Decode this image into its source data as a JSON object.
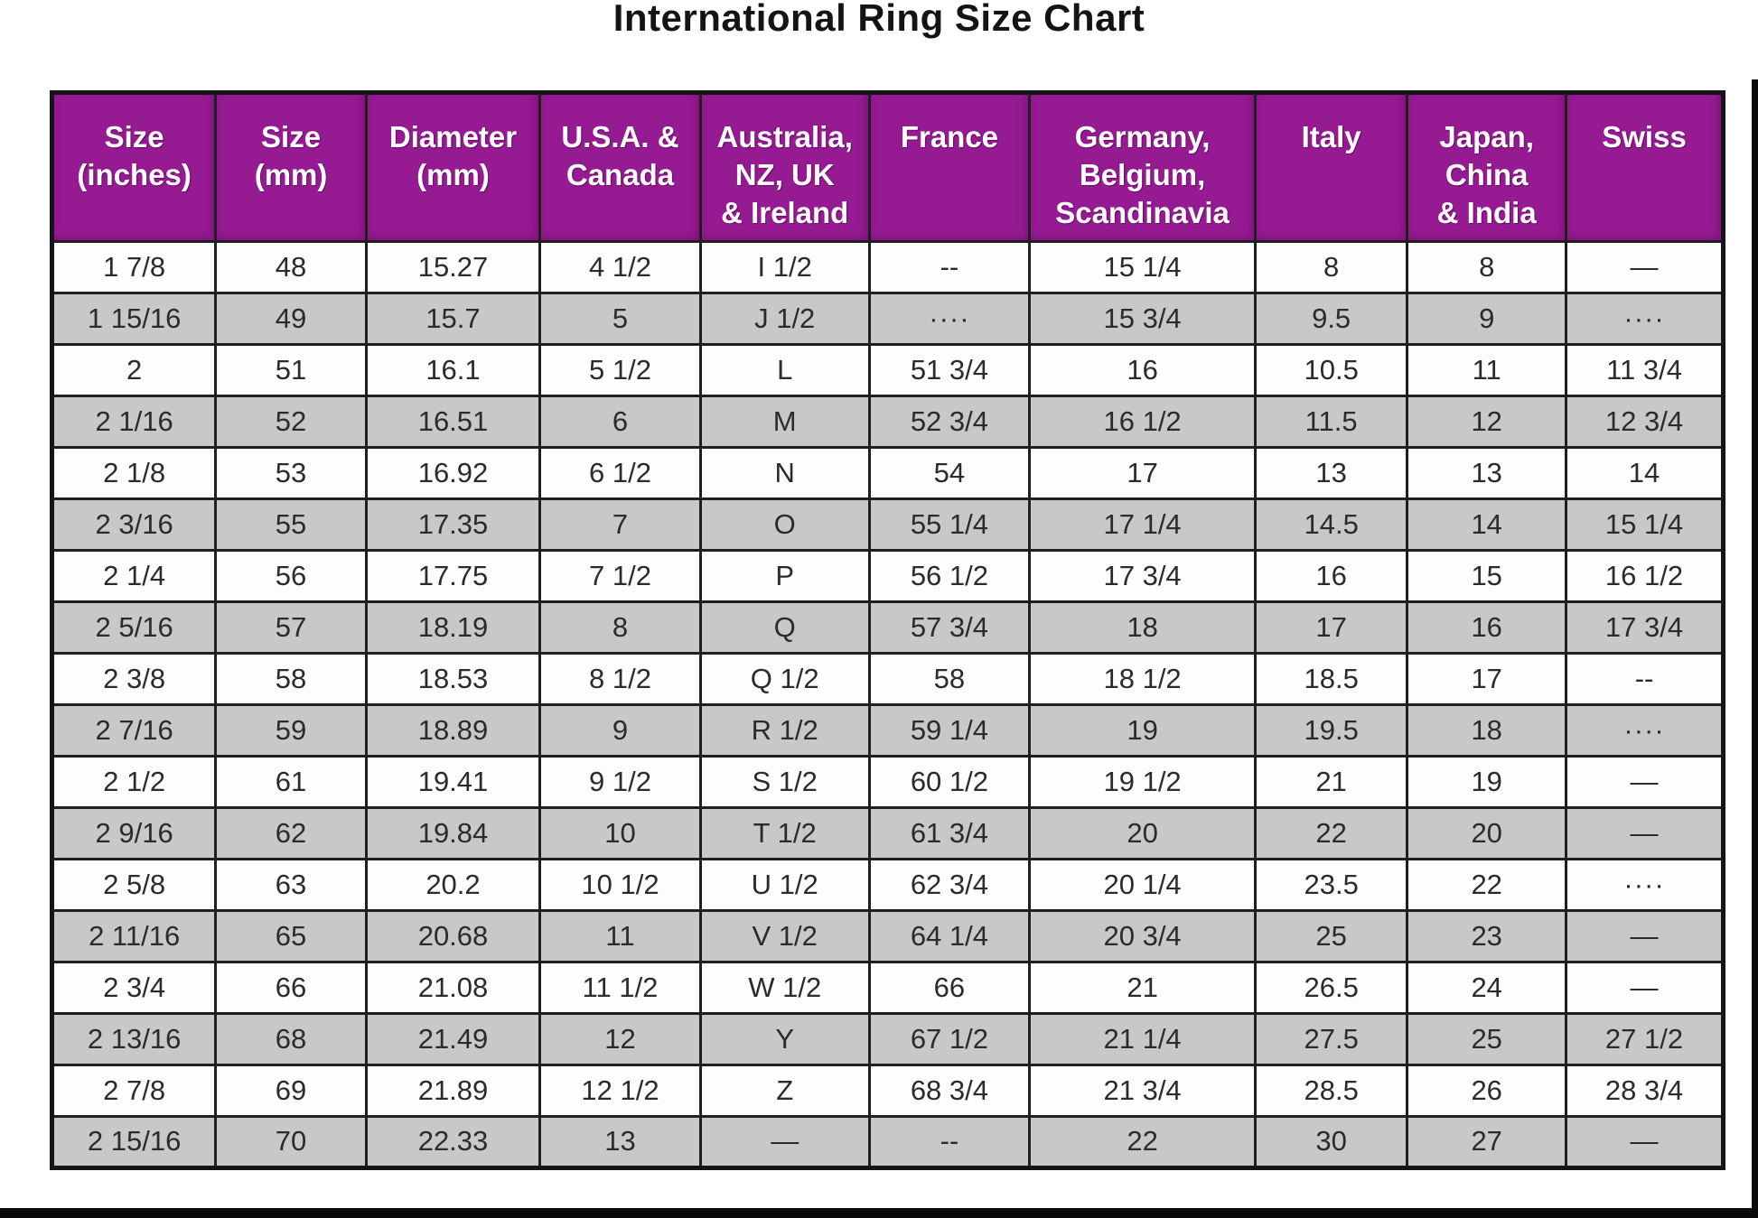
{
  "page": {
    "title": "International Ring Size Chart"
  },
  "colors": {
    "header_bg": "#961a92",
    "header_text": "#ffffff",
    "row_bg": "#fdfdfd",
    "row_alt_bg": "#c8c8c8",
    "border": "#1f1f1f",
    "title_text": "#141414",
    "cell_text": "#2b2b2b"
  },
  "chart_data": {
    "type": "table",
    "title": "International Ring Size Chart",
    "layout": {
      "header_position": "top",
      "alternating_rows": true
    },
    "columns": [
      {
        "key": "size-inches",
        "label": "Size\n(inches)"
      },
      {
        "key": "size-mm",
        "label": "Size\n(mm)"
      },
      {
        "key": "diameter-mm",
        "label": "Diameter\n(mm)"
      },
      {
        "key": "usa-canada",
        "label": "U.S.A. &\nCanada"
      },
      {
        "key": "australia-nz-uk-ireland",
        "label": "Australia,\nNZ, UK\n& Ireland"
      },
      {
        "key": "france",
        "label": "France"
      },
      {
        "key": "germany-belgium-scandinavia",
        "label": "Germany,\nBelgium,\nScandinavia"
      },
      {
        "key": "italy",
        "label": "Italy"
      },
      {
        "key": "japan-china-india",
        "label": "Japan,\nChina\n& India"
      },
      {
        "key": "swiss",
        "label": "Swiss"
      }
    ],
    "rows": [
      [
        "1 7/8",
        "48",
        "15.27",
        "4 1/2",
        "I 1/2",
        "--",
        "15 1/4",
        "8",
        "8",
        "—"
      ],
      [
        "1 15/16",
        "49",
        "15.7",
        "5",
        "J 1/2",
        "····",
        "15 3/4",
        "9.5",
        "9",
        "····"
      ],
      [
        "2",
        "51",
        "16.1",
        "5 1/2",
        "L",
        "51 3/4",
        "16",
        "10.5",
        "11",
        "11 3/4"
      ],
      [
        "2 1/16",
        "52",
        "16.51",
        "6",
        "M",
        "52 3/4",
        "16 1/2",
        "11.5",
        "12",
        "12 3/4"
      ],
      [
        "2 1/8",
        "53",
        "16.92",
        "6 1/2",
        "N",
        "54",
        "17",
        "13",
        "13",
        "14"
      ],
      [
        "2 3/16",
        "55",
        "17.35",
        "7",
        "O",
        "55 1/4",
        "17 1/4",
        "14.5",
        "14",
        "15 1/4"
      ],
      [
        "2 1/4",
        "56",
        "17.75",
        "7 1/2",
        "P",
        "56 1/2",
        "17 3/4",
        "16",
        "15",
        "16 1/2"
      ],
      [
        "2 5/16",
        "57",
        "18.19",
        "8",
        "Q",
        "57 3/4",
        "18",
        "17",
        "16",
        "17 3/4"
      ],
      [
        "2 3/8",
        "58",
        "18.53",
        "8 1/2",
        "Q 1/2",
        "58",
        "18 1/2",
        "18.5",
        "17",
        "--"
      ],
      [
        "2 7/16",
        "59",
        "18.89",
        "9",
        "R 1/2",
        "59 1/4",
        "19",
        "19.5",
        "18",
        "····"
      ],
      [
        "2 1/2",
        "61",
        "19.41",
        "9 1/2",
        "S 1/2",
        "60 1/2",
        "19 1/2",
        "21",
        "19",
        "—"
      ],
      [
        "2 9/16",
        "62",
        "19.84",
        "10",
        "T 1/2",
        "61 3/4",
        "20",
        "22",
        "20",
        "—"
      ],
      [
        "2 5/8",
        "63",
        "20.2",
        "10 1/2",
        "U 1/2",
        "62 3/4",
        "20 1/4",
        "23.5",
        "22",
        "····"
      ],
      [
        "2 11/16",
        "65",
        "20.68",
        "11",
        "V 1/2",
        "64 1/4",
        "20 3/4",
        "25",
        "23",
        "—"
      ],
      [
        "2 3/4",
        "66",
        "21.08",
        "11 1/2",
        "W 1/2",
        "66",
        "21",
        "26.5",
        "24",
        "—"
      ],
      [
        "2 13/16",
        "68",
        "21.49",
        "12",
        "Y",
        "67 1/2",
        "21 1/4",
        "27.5",
        "25",
        "27 1/2"
      ],
      [
        "2 7/8",
        "69",
        "21.89",
        "12 1/2",
        "Z",
        "68 3/4",
        "21 3/4",
        "28.5",
        "26",
        "28 3/4"
      ],
      [
        "2 15/16",
        "70",
        "22.33",
        "13",
        "—",
        "--",
        "22",
        "30",
        "27",
        "—"
      ]
    ]
  }
}
